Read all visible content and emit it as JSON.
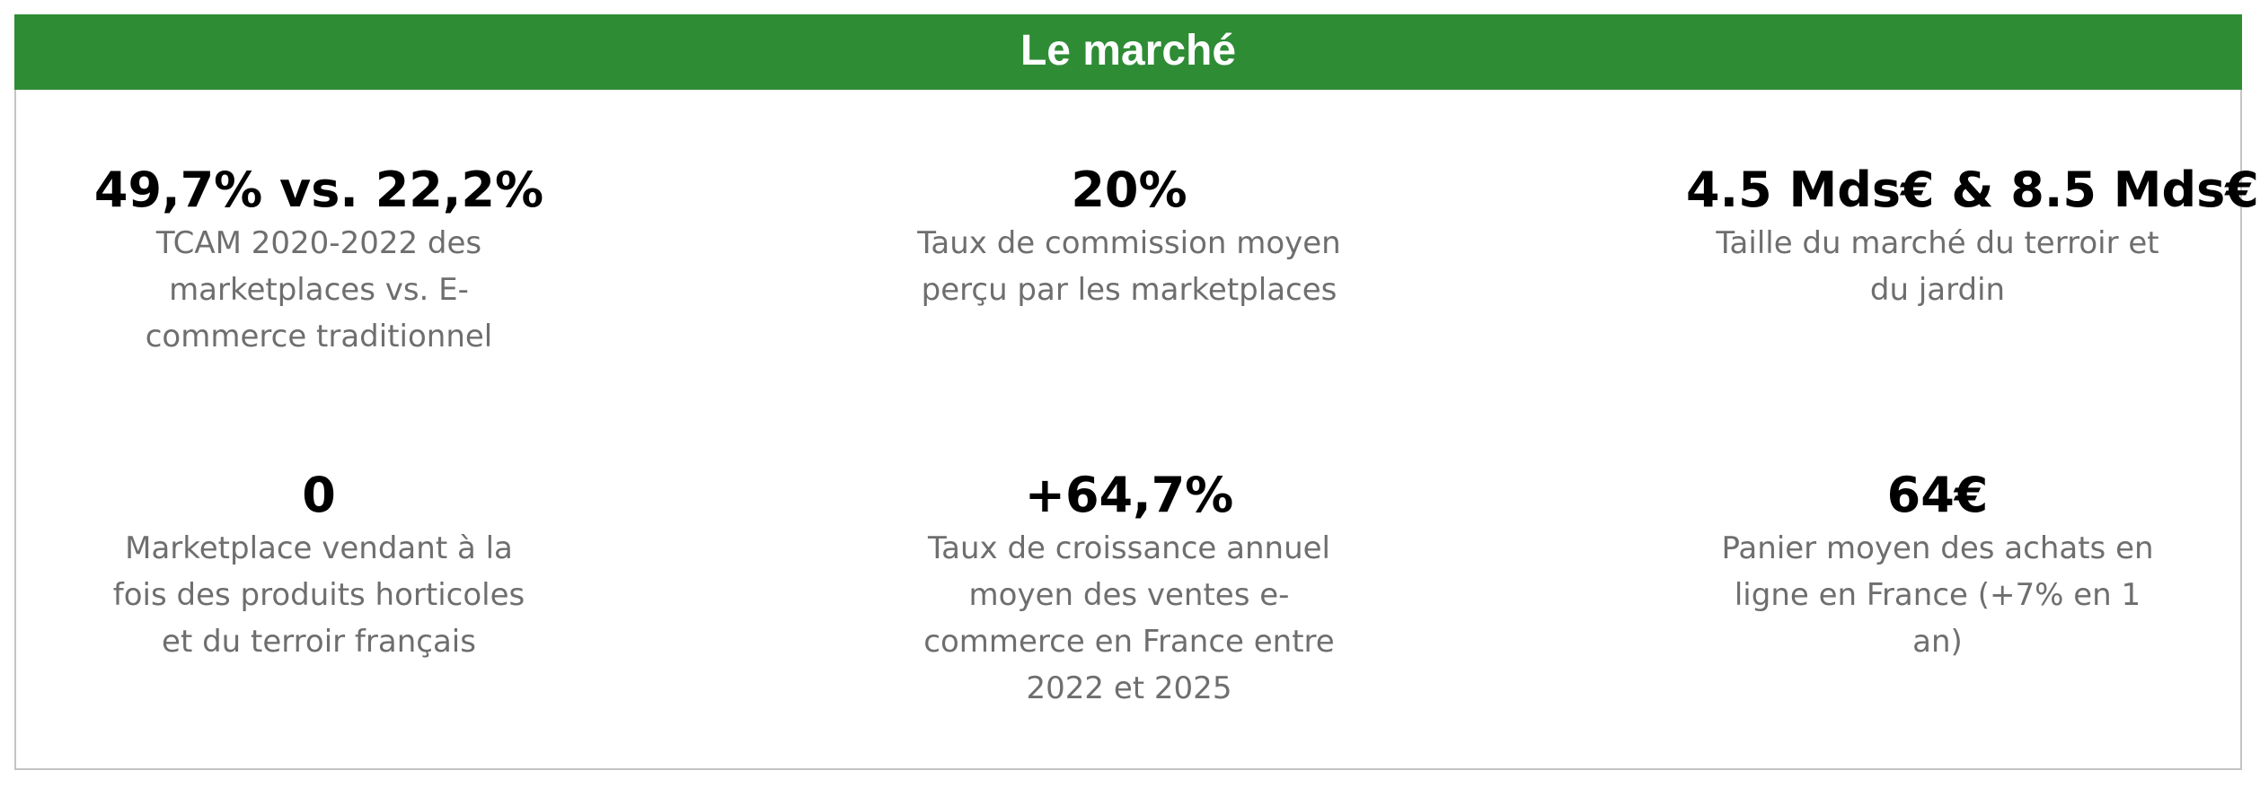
{
  "header": {
    "title": "Le marché",
    "background_color": "#2e8c35"
  },
  "stats": [
    {
      "value": "49,7% vs. 22,2%",
      "description_lines": [
        "TCAM 2020-2022 des",
        "marketplaces vs. E-",
        "commerce traditionnel"
      ]
    },
    {
      "value": "20%",
      "description_lines": [
        "Taux de commission moyen",
        "perçu par les marketplaces"
      ]
    },
    {
      "value": "4.5 Mds€ & 8.5 Mds€",
      "description_lines": [
        "Taille du marché  du terroir et",
        "du jardin"
      ]
    },
    {
      "value": "0",
      "description_lines": [
        "Marketplace vendant  à la",
        "fois des produits horticoles",
        "et  du terroir français"
      ]
    },
    {
      "value": "+64,7%",
      "description_lines": [
        "Taux de croissance annuel",
        "moyen des ventes e-",
        "commerce en France entre",
        "2022 et 2025"
      ]
    },
    {
      "value": "64€",
      "description_lines": [
        "Panier moyen des achats en",
        "ligne en France (+7% en 1",
        "an)"
      ]
    }
  ]
}
